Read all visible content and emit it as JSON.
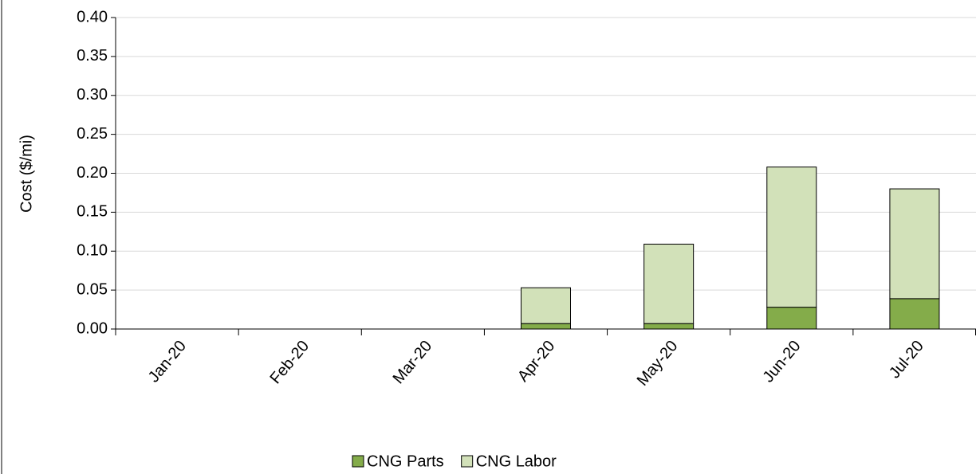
{
  "chart_data": {
    "type": "stacked_bar",
    "y_label": "Cost ($/mi)",
    "categories": [
      "Jan-20",
      "Feb-20",
      "Mar-20",
      "Apr-20",
      "May-20",
      "Jun-20",
      "Jul-20"
    ],
    "series": [
      {
        "name": "CNG Parts",
        "color": "#84ac4a",
        "values": [
          0,
          0,
          0,
          0.007,
          0.007,
          0.028,
          0.039
        ]
      },
      {
        "name": "CNG Labor",
        "color": "#d2e1b9",
        "values": [
          0,
          0,
          0,
          0.046,
          0.102,
          0.18,
          0.141
        ]
      }
    ],
    "ylim": [
      0,
      0.4
    ],
    "yticks": [
      {
        "value": 0,
        "label": "0.00"
      },
      {
        "value": 0.05,
        "label": "0.05"
      },
      {
        "value": 0.1,
        "label": "0.10"
      },
      {
        "value": 0.15,
        "label": "0.15"
      },
      {
        "value": 0.2,
        "label": "0.20"
      },
      {
        "value": 0.25,
        "label": "0.25"
      },
      {
        "value": 0.3,
        "label": "0.30"
      },
      {
        "value": 0.35,
        "label": "0.35"
      },
      {
        "value": 0.4,
        "label": "0.40"
      }
    ],
    "grid": true,
    "legend": "bottom"
  }
}
